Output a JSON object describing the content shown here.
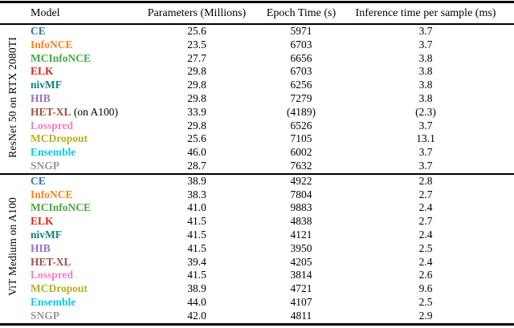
{
  "header": {
    "columns": [
      "Model",
      "Parameters (Millions)",
      "Epoch Time (s)",
      "Inference time per sample (ms)"
    ]
  },
  "model_colors": {
    "blue": "#2A76B6",
    "orange": "#F5821F",
    "green": "#43A943",
    "red": "#DD2622",
    "teal": "#12827C",
    "purple": "#9770C0",
    "brown": "#9E4F45",
    "pink": "#F27EC0",
    "olive": "#B7AE20",
    "cyan": "#0AC5E8",
    "gray": "#979797"
  },
  "sections": [
    {
      "group_label": "ResNet 50 on RTX 2080TI",
      "rows": [
        {
          "model": "CE",
          "suffix": "",
          "color": "#2A76B6",
          "params": "25.6",
          "epoch_time": "5971",
          "inference": "3.7"
        },
        {
          "model": "InfoNCE",
          "suffix": "",
          "color": "#F5821F",
          "params": "23.5",
          "epoch_time": "6703",
          "inference": "3.7"
        },
        {
          "model": "MCInfoNCE",
          "suffix": "",
          "color": "#43A943",
          "params": "27.7",
          "epoch_time": "6656",
          "inference": "3.8"
        },
        {
          "model": "ELK",
          "suffix": "",
          "color": "#DD2622",
          "params": "29.8",
          "epoch_time": "6703",
          "inference": "3.8"
        },
        {
          "model": "nivMF",
          "suffix": "",
          "color": "#12827C",
          "params": "29.8",
          "epoch_time": "6256",
          "inference": "3.8"
        },
        {
          "model": "HIB",
          "suffix": "",
          "color": "#9770C0",
          "params": "29.8",
          "epoch_time": "7279",
          "inference": "3.8"
        },
        {
          "model": "HET-XL",
          "suffix": " (on A100)",
          "color": "#9E4F45",
          "params": "33.9",
          "epoch_time": "(4189)",
          "inference": "(2.3)"
        },
        {
          "model": "Losspred",
          "suffix": "",
          "color": "#F27EC0",
          "params": "29.8",
          "epoch_time": "6526",
          "inference": "3.7"
        },
        {
          "model": "MCDropout",
          "suffix": "",
          "color": "#B7AE20",
          "params": "25.6",
          "epoch_time": "7105",
          "inference": "13.1"
        },
        {
          "model": "Ensemble",
          "suffix": "",
          "color": "#0AC5E8",
          "params": "46.0",
          "epoch_time": "6002",
          "inference": "3.7"
        },
        {
          "model": "SNGP",
          "suffix": "",
          "color": "#979797",
          "params": "28.7",
          "epoch_time": "7632",
          "inference": "3.7"
        }
      ]
    },
    {
      "group_label": "ViT Medium on A100",
      "rows": [
        {
          "model": "CE",
          "suffix": "",
          "color": "#2A76B6",
          "params": "38.9",
          "epoch_time": "4922",
          "inference": "2.8"
        },
        {
          "model": "InfoNCE",
          "suffix": "",
          "color": "#F5821F",
          "params": "38.3",
          "epoch_time": "7804",
          "inference": "2.7"
        },
        {
          "model": "MCInfoNCE",
          "suffix": "",
          "color": "#43A943",
          "params": "41.0",
          "epoch_time": "9883",
          "inference": "2.4"
        },
        {
          "model": "ELK",
          "suffix": "",
          "color": "#DD2622",
          "params": "41.5",
          "epoch_time": "4838",
          "inference": "2.7"
        },
        {
          "model": "nivMF",
          "suffix": "",
          "color": "#12827C",
          "params": "41.5",
          "epoch_time": "4121",
          "inference": "2.4"
        },
        {
          "model": "HIB",
          "suffix": "",
          "color": "#9770C0",
          "params": "41.5",
          "epoch_time": "3950",
          "inference": "2.5"
        },
        {
          "model": "HET-XL",
          "suffix": "",
          "color": "#9E4F45",
          "params": "39.4",
          "epoch_time": "4205",
          "inference": "2.4"
        },
        {
          "model": "Losspred",
          "suffix": "",
          "color": "#F27EC0",
          "params": "41.5",
          "epoch_time": "3814",
          "inference": "2.6"
        },
        {
          "model": "MCDropout",
          "suffix": "",
          "color": "#B7AE20",
          "params": "38.9",
          "epoch_time": "4721",
          "inference": "9.6"
        },
        {
          "model": "Ensemble",
          "suffix": "",
          "color": "#0AC5E8",
          "params": "44.0",
          "epoch_time": "4107",
          "inference": "2.5"
        },
        {
          "model": "SNGP",
          "suffix": "",
          "color": "#979797",
          "params": "42.0",
          "epoch_time": "4811",
          "inference": "2.9"
        }
      ]
    }
  ]
}
